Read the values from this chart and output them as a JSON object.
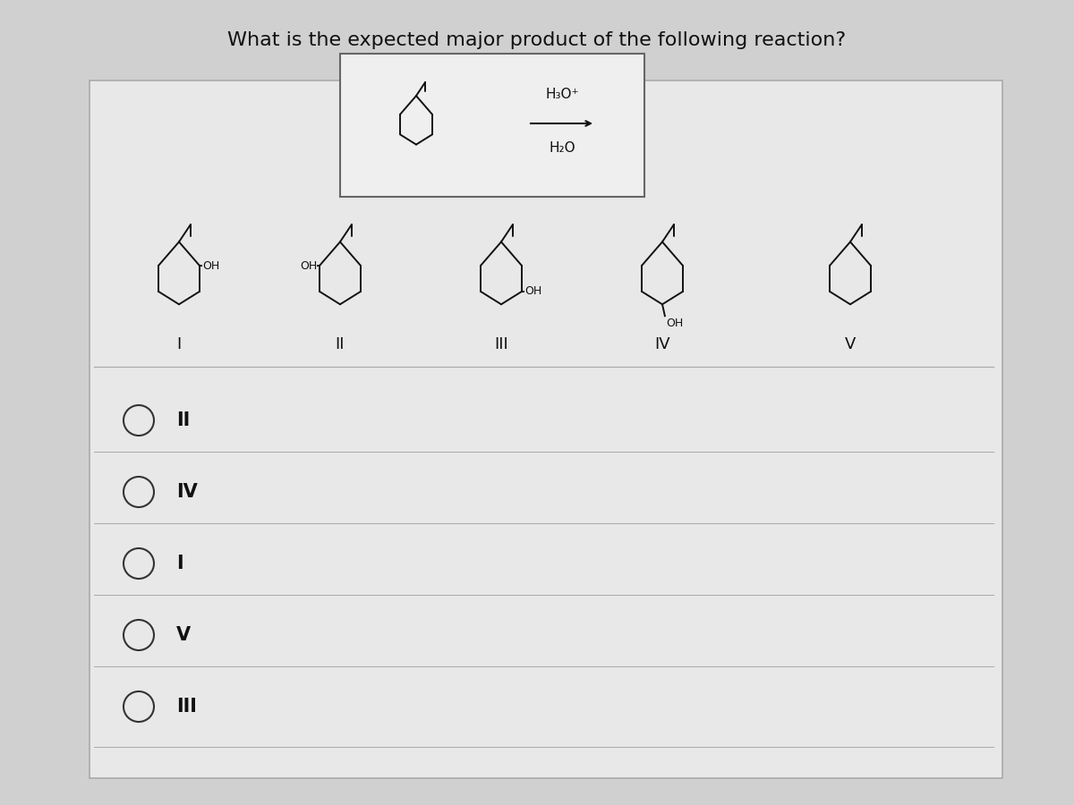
{
  "title": "What is the expected major product of the following reaction?",
  "title_fontsize": 16,
  "bg_color": "#d0d0d0",
  "card_bg": "#e8e8e8",
  "text_color": "#111111",
  "reaction_conditions_line1": "H₃O⁺",
  "reaction_conditions_line2": "H₂O",
  "compound_labels": [
    "I",
    "II",
    "III",
    "IV",
    "V"
  ],
  "option_labels": [
    "II",
    "IV",
    "I",
    "V",
    "III"
  ],
  "option_text_fontsize": 15,
  "compound_label_fontsize": 13,
  "condition_fontsize": 11
}
